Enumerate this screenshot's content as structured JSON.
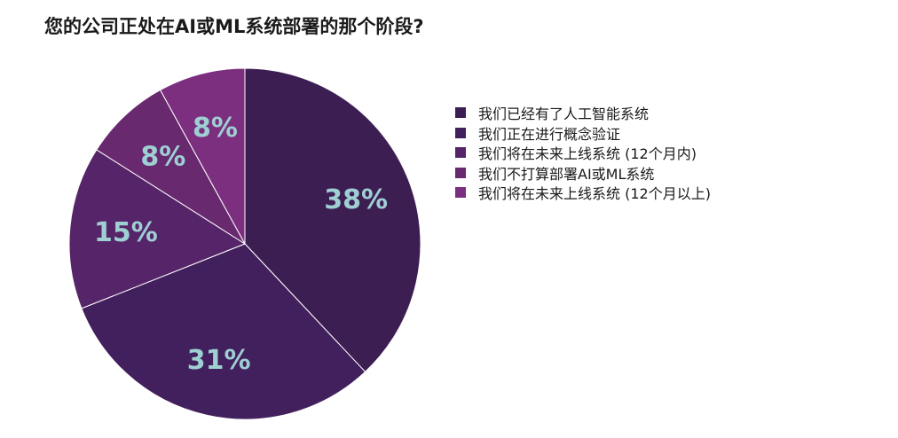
{
  "chart_data": {
    "type": "pie",
    "title": "您的公司正处在AI或ML系统部署的那个阶段?",
    "legend_position": "right",
    "label_color": "#9ecfd3",
    "slices": [
      {
        "label": "我们已经有了人工智能系统",
        "value": 38,
        "display": "38%",
        "color": "#3d1e52"
      },
      {
        "label": "我们正在进行概念验证",
        "value": 31,
        "display": "31%",
        "color": "#42205d"
      },
      {
        "label": "我们将在未来上线系统 (12个月内)",
        "value": 15,
        "display": "15%",
        "color": "#562468"
      },
      {
        "label": "我们不打算部署AI或ML系统",
        "value": 8,
        "display": "8%",
        "color": "#68296f"
      },
      {
        "label": "我们将在未来上线系统 (12个月以上)",
        "value": 8,
        "display": "8%",
        "color": "#7c2e7f"
      }
    ]
  }
}
